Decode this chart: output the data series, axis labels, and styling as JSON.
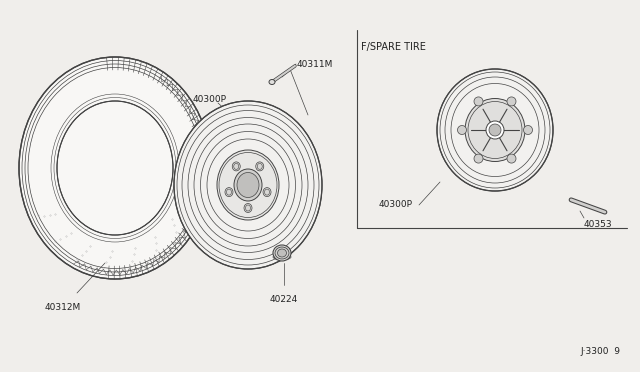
{
  "bg_color": "#f0eeeb",
  "line_color": "#444444",
  "text_color": "#222222",
  "title_bottom_right": "J·3300  9",
  "spare_tire_label": "F/SPARE TIRE",
  "parts": {
    "tire_label": "40312M",
    "wheel_label": "40300P",
    "valve_label": "40311M",
    "lugnut_label": "40224",
    "spare_wheel_label": "40300P",
    "spare_clip_label": "40353"
  },
  "figsize": [
    6.4,
    3.72
  ],
  "dpi": 100
}
